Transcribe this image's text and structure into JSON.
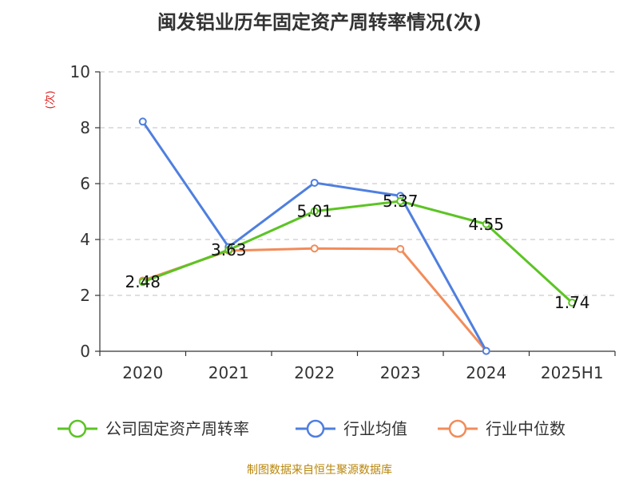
{
  "title": "闽发铝业历年固定资产周转率情况(次)",
  "footer": "制图数据来自恒生聚源数据库",
  "chart_data": {
    "type": "line",
    "title": "闽发铝业历年固定资产周转率情况(次)",
    "ylabel": "(次)",
    "xlabel": "",
    "categories": [
      "2020",
      "2021",
      "2022",
      "2023",
      "2024",
      "2025H1"
    ],
    "ylim": [
      0,
      10
    ],
    "yticks": [
      0,
      2,
      4,
      6,
      8,
      10
    ],
    "grid": true,
    "legend_position": "bottom",
    "series": [
      {
        "name": "公司固定资产周转率",
        "color": "#5cc424",
        "values": [
          2.48,
          3.63,
          5.01,
          5.37,
          4.55,
          1.74
        ],
        "labels": [
          "2.48",
          "3.63",
          "5.01",
          "5.37",
          "4.55",
          "1.74"
        ]
      },
      {
        "name": "行业均值",
        "color": "#4f7fdf",
        "values": [
          8.22,
          3.73,
          6.03,
          5.56,
          0.01,
          null
        ]
      },
      {
        "name": "行业中位数",
        "color": "#f28c5a",
        "values": [
          2.53,
          3.6,
          3.68,
          3.66,
          0.01,
          null
        ]
      }
    ]
  }
}
